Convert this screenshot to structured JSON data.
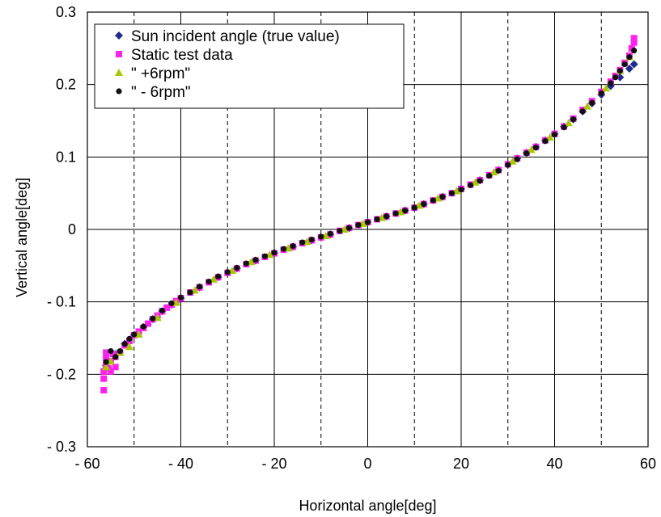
{
  "chart_data": {
    "type": "scatter",
    "xlabel": "Horizontal angle[deg]",
    "ylabel": "Vertical angle[deg]",
    "xlim": [
      -60,
      60
    ],
    "ylim": [
      -0.3,
      0.3
    ],
    "xticks": [
      -60,
      -40,
      -20,
      0,
      20,
      40,
      60
    ],
    "yticks": [
      -0.3,
      -0.2,
      -0.1,
      0,
      0.1,
      0.2,
      0.3
    ],
    "xtick_labels": [
      "- 60",
      "- 40",
      "- 20",
      "0",
      "20",
      "40",
      "60"
    ],
    "ytick_labels": [
      "- 0.3",
      "- 0.2",
      "- 0.1",
      "0",
      "0.1",
      "0.2",
      "0.3"
    ],
    "grid": {
      "major": "solid",
      "x_minor_dashed_at": [
        -50,
        -30,
        -10,
        10,
        30,
        50
      ]
    },
    "legend_position": "top-left",
    "series": [
      {
        "name": "Sun incident angle (true value)",
        "marker": "diamond",
        "color": "#1f2a8a",
        "points": [
          [
            -56,
            -0.188
          ],
          [
            -54,
            -0.172
          ],
          [
            -52,
            -0.158
          ],
          [
            -50,
            -0.146
          ],
          [
            -48,
            -0.135
          ],
          [
            -46,
            -0.124
          ],
          [
            -44,
            -0.113
          ],
          [
            -42,
            -0.104
          ],
          [
            -40,
            -0.095
          ],
          [
            -36,
            -0.08
          ],
          [
            -32,
            -0.066
          ],
          [
            -28,
            -0.054
          ],
          [
            -24,
            -0.043
          ],
          [
            -20,
            -0.033
          ],
          [
            -16,
            -0.024
          ],
          [
            -12,
            -0.015
          ],
          [
            -8,
            -0.007
          ],
          [
            -4,
            0.002
          ],
          [
            0,
            0.01
          ],
          [
            4,
            0.018
          ],
          [
            8,
            0.026
          ],
          [
            12,
            0.035
          ],
          [
            16,
            0.045
          ],
          [
            20,
            0.056
          ],
          [
            24,
            0.068
          ],
          [
            28,
            0.082
          ],
          [
            32,
            0.098
          ],
          [
            34,
            0.106
          ],
          [
            36,
            0.114
          ],
          [
            38,
            0.123
          ],
          [
            40,
            0.132
          ],
          [
            42,
            0.142
          ],
          [
            44,
            0.152
          ],
          [
            46,
            0.163
          ],
          [
            48,
            0.174
          ],
          [
            50,
            0.186
          ],
          [
            52,
            0.198
          ],
          [
            54,
            0.21
          ],
          [
            56,
            0.222
          ],
          [
            57,
            0.228
          ]
        ]
      },
      {
        "name": "Static test data",
        "marker": "square",
        "color": "#ff22ee",
        "points": [
          [
            -56.5,
            -0.222
          ],
          [
            -56.5,
            -0.206
          ],
          [
            -56.5,
            -0.196
          ],
          [
            -56,
            -0.188
          ],
          [
            -56,
            -0.178
          ],
          [
            -56,
            -0.17
          ],
          [
            -55.5,
            -0.192
          ],
          [
            -55,
            -0.196
          ],
          [
            -55,
            -0.182
          ],
          [
            -54.5,
            -0.172
          ],
          [
            -54,
            -0.19
          ],
          [
            -54,
            -0.176
          ],
          [
            -53,
            -0.17
          ],
          [
            -52,
            -0.16
          ],
          [
            -51,
            -0.154
          ],
          [
            -50,
            -0.146
          ],
          [
            -49,
            -0.141
          ],
          [
            -48,
            -0.136
          ],
          [
            -47,
            -0.13
          ],
          [
            -46,
            -0.124
          ],
          [
            -45,
            -0.119
          ],
          [
            -44,
            -0.113
          ],
          [
            -43,
            -0.108
          ],
          [
            -42,
            -0.104
          ],
          [
            -41,
            -0.099
          ],
          [
            -40,
            -0.095
          ],
          [
            -38,
            -0.087
          ],
          [
            -36,
            -0.08
          ],
          [
            -34,
            -0.073
          ],
          [
            -32,
            -0.066
          ],
          [
            -30,
            -0.06
          ],
          [
            -28,
            -0.054
          ],
          [
            -26,
            -0.048
          ],
          [
            -24,
            -0.043
          ],
          [
            -22,
            -0.038
          ],
          [
            -20,
            -0.033
          ],
          [
            -18,
            -0.028
          ],
          [
            -16,
            -0.024
          ],
          [
            -14,
            -0.019
          ],
          [
            -12,
            -0.015
          ],
          [
            -10,
            -0.011
          ],
          [
            -8,
            -0.007
          ],
          [
            -6,
            -0.002
          ],
          [
            -4,
            0.002
          ],
          [
            -2,
            0.006
          ],
          [
            0,
            0.01
          ],
          [
            2,
            0.014
          ],
          [
            4,
            0.018
          ],
          [
            6,
            0.022
          ],
          [
            8,
            0.026
          ],
          [
            10,
            0.03
          ],
          [
            12,
            0.035
          ],
          [
            14,
            0.04
          ],
          [
            16,
            0.045
          ],
          [
            18,
            0.05
          ],
          [
            20,
            0.056
          ],
          [
            22,
            0.062
          ],
          [
            24,
            0.068
          ],
          [
            26,
            0.075
          ],
          [
            28,
            0.082
          ],
          [
            30,
            0.09
          ],
          [
            32,
            0.098
          ],
          [
            34,
            0.106
          ],
          [
            36,
            0.114
          ],
          [
            38,
            0.123
          ],
          [
            40,
            0.132
          ],
          [
            42,
            0.142
          ],
          [
            44,
            0.153
          ],
          [
            46,
            0.165
          ],
          [
            48,
            0.177
          ],
          [
            50,
            0.19
          ],
          [
            52,
            0.204
          ],
          [
            53,
            0.212
          ],
          [
            54,
            0.22
          ],
          [
            55,
            0.23
          ],
          [
            56,
            0.24
          ],
          [
            56.5,
            0.25
          ],
          [
            57,
            0.258
          ],
          [
            57,
            0.264
          ]
        ]
      },
      {
        "name": "\" +6rpm\"",
        "marker": "triangle",
        "color": "#a8c800",
        "points": [
          [
            -56,
            -0.19
          ],
          [
            -55,
            -0.182
          ],
          [
            -53,
            -0.17
          ],
          [
            -51,
            -0.162
          ],
          [
            -49,
            -0.145
          ],
          [
            -45,
            -0.122
          ],
          [
            -41,
            -0.101
          ],
          [
            -37,
            -0.084
          ],
          [
            -33,
            -0.069
          ],
          [
            -29,
            -0.057
          ],
          [
            -25,
            -0.045
          ],
          [
            -21,
            -0.035
          ],
          [
            -17,
            -0.026
          ],
          [
            -13,
            -0.017
          ],
          [
            -9,
            -0.009
          ],
          [
            -5,
            0.0
          ],
          [
            -1,
            0.008
          ],
          [
            3,
            0.016
          ],
          [
            7,
            0.024
          ],
          [
            11,
            0.033
          ],
          [
            15,
            0.043
          ],
          [
            19,
            0.053
          ],
          [
            23,
            0.065
          ],
          [
            27,
            0.079
          ],
          [
            31,
            0.094
          ],
          [
            35,
            0.11
          ],
          [
            39,
            0.127
          ],
          [
            43,
            0.147
          ],
          [
            47,
            0.17
          ],
          [
            51,
            0.195
          ],
          [
            54,
            0.219
          ],
          [
            56,
            0.238
          ]
        ]
      },
      {
        "name": "\" - 6rpm\"",
        "marker": "circle",
        "color": "#111111",
        "points": [
          [
            -56,
            -0.183
          ],
          [
            -55,
            -0.168
          ],
          [
            -54,
            -0.176
          ],
          [
            -53,
            -0.168
          ],
          [
            -52,
            -0.158
          ],
          [
            -51,
            -0.151
          ],
          [
            -50,
            -0.145
          ],
          [
            -48,
            -0.134
          ],
          [
            -46,
            -0.123
          ],
          [
            -44,
            -0.112
          ],
          [
            -42,
            -0.102
          ],
          [
            -40,
            -0.094
          ],
          [
            -38,
            -0.087
          ],
          [
            -36,
            -0.079
          ],
          [
            -34,
            -0.072
          ],
          [
            -32,
            -0.065
          ],
          [
            -30,
            -0.059
          ],
          [
            -28,
            -0.053
          ],
          [
            -26,
            -0.047
          ],
          [
            -24,
            -0.042
          ],
          [
            -22,
            -0.037
          ],
          [
            -20,
            -0.032
          ],
          [
            -18,
            -0.027
          ],
          [
            -16,
            -0.023
          ],
          [
            -14,
            -0.018
          ],
          [
            -12,
            -0.014
          ],
          [
            -10,
            -0.01
          ],
          [
            -8,
            -0.006
          ],
          [
            -6,
            -0.002
          ],
          [
            -4,
            0.002
          ],
          [
            -2,
            0.006
          ],
          [
            0,
            0.01
          ],
          [
            2,
            0.014
          ],
          [
            4,
            0.018
          ],
          [
            6,
            0.022
          ],
          [
            8,
            0.026
          ],
          [
            10,
            0.03
          ],
          [
            12,
            0.035
          ],
          [
            14,
            0.04
          ],
          [
            16,
            0.045
          ],
          [
            18,
            0.05
          ],
          [
            20,
            0.055
          ],
          [
            22,
            0.061
          ],
          [
            24,
            0.067
          ],
          [
            26,
            0.074
          ],
          [
            28,
            0.081
          ],
          [
            30,
            0.089
          ],
          [
            32,
            0.097
          ],
          [
            34,
            0.105
          ],
          [
            36,
            0.113
          ],
          [
            38,
            0.122
          ],
          [
            40,
            0.131
          ],
          [
            42,
            0.141
          ],
          [
            44,
            0.152
          ],
          [
            46,
            0.163
          ],
          [
            48,
            0.175
          ],
          [
            50,
            0.188
          ],
          [
            52,
            0.202
          ],
          [
            53,
            0.21
          ],
          [
            54,
            0.219
          ],
          [
            55,
            0.228
          ],
          [
            56,
            0.238
          ],
          [
            57,
            0.247
          ]
        ]
      }
    ]
  }
}
